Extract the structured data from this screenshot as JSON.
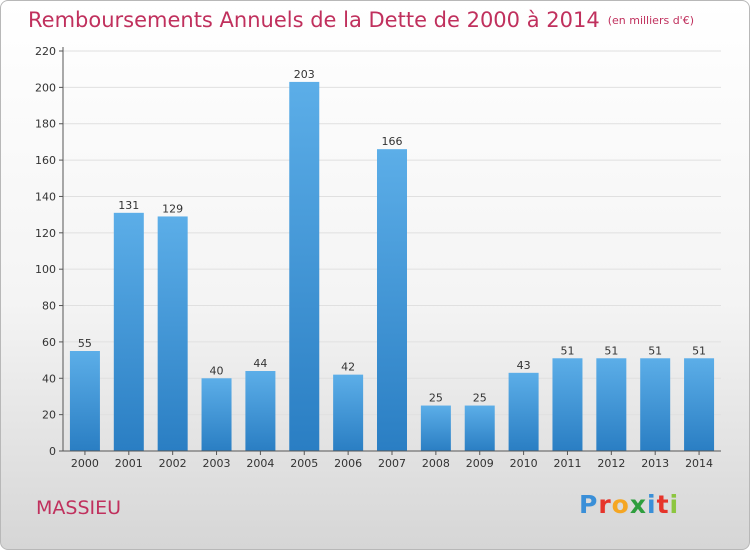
{
  "header": {
    "title": "Remboursements Annuels de la Dette de 2000 à 2014",
    "subtitle": "(en milliers d'€)"
  },
  "footer": {
    "commune": "MASSIEU",
    "brand": "Proxiti",
    "brand_colors": [
      "#3a8fd8",
      "#e6342b",
      "#f5a623",
      "#2e9e3e",
      "#3a8fd8",
      "#e6342b",
      "#8cc63f"
    ]
  },
  "colors": {
    "title": "#c0305d",
    "bar_light": "#5caee8",
    "bar_dark": "#2a7ec3",
    "grid": "#e0e0e0"
  },
  "chart_data": {
    "type": "bar",
    "title": "Remboursements Annuels de la Dette de 2000 à 2014",
    "categories": [
      "2000",
      "2001",
      "2002",
      "2003",
      "2004",
      "2005",
      "2006",
      "2007",
      "2008",
      "2009",
      "2010",
      "2011",
      "2012",
      "2013",
      "2014"
    ],
    "values": [
      55,
      131,
      129,
      40,
      44,
      203,
      42,
      166,
      25,
      25,
      43,
      51,
      51,
      51,
      51
    ],
    "ylim": [
      0,
      220
    ],
    "yticks": [
      0,
      20,
      40,
      60,
      80,
      100,
      120,
      140,
      160,
      180,
      200,
      220
    ],
    "grid": true,
    "legend": "none"
  }
}
